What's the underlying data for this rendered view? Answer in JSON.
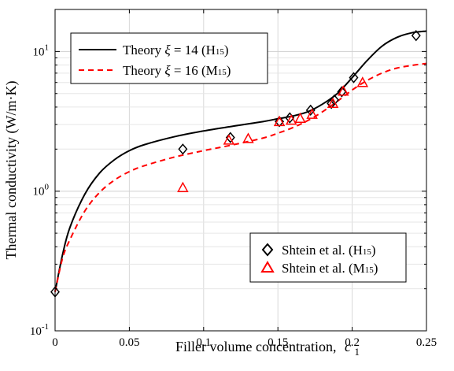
{
  "chart_data": {
    "type": "line",
    "xlabel": "Filler volume concentration,",
    "xlabel_symbol": "c",
    "xlabel_sub": "1",
    "ylabel": "Thermal conductivity (W/m·K)",
    "xlim": [
      0,
      0.25
    ],
    "ylim": [
      0.1,
      20
    ],
    "yscale": "log",
    "grid": true,
    "x_ticks": [
      {
        "value": 0,
        "label": "0"
      },
      {
        "value": 0.05,
        "label": "0.05"
      },
      {
        "value": 0.1,
        "label": "0.1"
      },
      {
        "value": 0.15,
        "label": "0.15"
      },
      {
        "value": 0.2,
        "label": "0.2"
      },
      {
        "value": 0.25,
        "label": "0.25"
      }
    ],
    "y_ticks": [
      {
        "value": 0.1,
        "base": "10",
        "exp": "-1"
      },
      {
        "value": 1,
        "base": "10",
        "exp": "0"
      },
      {
        "value": 10,
        "base": "10",
        "exp": "1"
      }
    ],
    "legend_lines": {
      "placement": "top-left",
      "entries": [
        {
          "pre": "Theory ",
          "sym": "ξ",
          "mid": " = 14 (H",
          "sub": "15",
          "post": ")"
        },
        {
          "pre": "Theory ",
          "sym": "ξ",
          "mid": " = 16 (M",
          "sub": "15",
          "post": ")"
        }
      ]
    },
    "legend_points": {
      "placement": "bottom-right",
      "entries": [
        {
          "pre": "Shtein et al. (H",
          "sub": "15",
          "post": ")"
        },
        {
          "pre": "Shtein et al. (M",
          "sub": "15",
          "post": ")"
        }
      ]
    },
    "series": [
      {
        "kind": "line",
        "style": "solid",
        "color": "#000000",
        "x": [
          0,
          0.005,
          0.01,
          0.02,
          0.03,
          0.04,
          0.05,
          0.06,
          0.08,
          0.1,
          0.12,
          0.14,
          0.15,
          0.16,
          0.17,
          0.18,
          0.19,
          0.2,
          0.21,
          0.22,
          0.23,
          0.24,
          0.25
        ],
        "y": [
          0.19,
          0.35,
          0.55,
          0.95,
          1.35,
          1.68,
          1.95,
          2.15,
          2.45,
          2.7,
          2.92,
          3.15,
          3.3,
          3.45,
          3.7,
          4.2,
          5.0,
          6.5,
          8.6,
          10.9,
          12.6,
          13.6,
          14.0
        ]
      },
      {
        "kind": "line",
        "style": "dashed",
        "color": "#ff0000",
        "x": [
          0,
          0.005,
          0.01,
          0.02,
          0.03,
          0.04,
          0.05,
          0.06,
          0.08,
          0.1,
          0.12,
          0.14,
          0.15,
          0.16,
          0.17,
          0.18,
          0.19,
          0.2,
          0.21,
          0.22,
          0.23,
          0.24,
          0.25
        ],
        "y": [
          0.19,
          0.33,
          0.45,
          0.72,
          0.98,
          1.2,
          1.38,
          1.52,
          1.75,
          1.95,
          2.15,
          2.4,
          2.6,
          2.85,
          3.2,
          3.7,
          4.4,
          5.3,
          6.2,
          7.0,
          7.6,
          7.95,
          8.2
        ]
      },
      {
        "kind": "scatter",
        "marker": "diamond",
        "color": "#000000",
        "x": [
          0,
          0.086,
          0.118,
          0.151,
          0.158,
          0.172,
          0.186,
          0.188,
          0.193,
          0.201,
          0.243
        ],
        "y": [
          0.19,
          2.0,
          2.42,
          3.15,
          3.35,
          3.8,
          4.25,
          4.5,
          5.15,
          6.5,
          13.0
        ]
      },
      {
        "kind": "scatter",
        "marker": "triangle",
        "color": "#ff0000",
        "x": [
          0.086,
          0.117,
          0.13,
          0.151,
          0.159,
          0.165,
          0.173,
          0.187,
          0.194,
          0.207
        ],
        "y": [
          1.06,
          2.32,
          2.38,
          3.15,
          3.22,
          3.32,
          3.55,
          4.25,
          5.2,
          6.0
        ]
      }
    ]
  }
}
